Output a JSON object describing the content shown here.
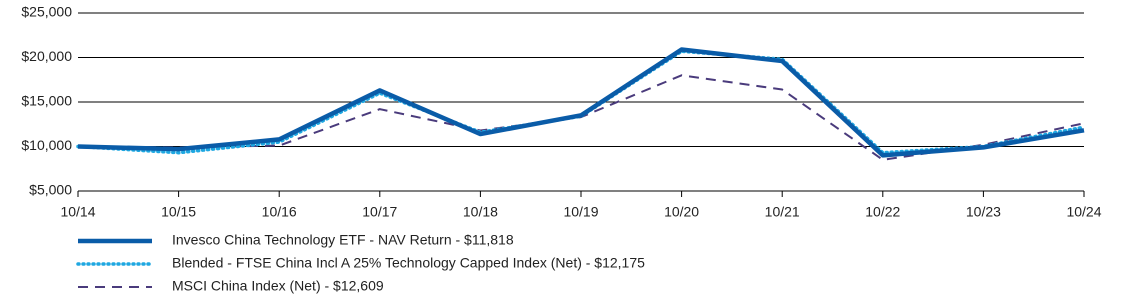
{
  "chart_data": {
    "type": "line",
    "categories": [
      "10/14",
      "10/15",
      "10/16",
      "10/17",
      "10/18",
      "10/19",
      "10/20",
      "10/21",
      "10/22",
      "10/23",
      "10/24"
    ],
    "series": [
      {
        "name": "Invesco China Technology ETF - NAV Return - $11,818",
        "color": "#0a5ca8",
        "style": "solid",
        "values": [
          10000,
          9700,
          10800,
          16300,
          11400,
          13500,
          20900,
          19600,
          9000,
          9900,
          11818
        ]
      },
      {
        "name": "Blended - FTSE China Incl A 25% Technology Capped Index (Net) - $12,175",
        "color": "#1ea7e1",
        "style": "dotted",
        "values": [
          10000,
          9300,
          10500,
          16000,
          11600,
          13400,
          20700,
          19800,
          9300,
          10000,
          12175
        ]
      },
      {
        "name": "MSCI China Index (Net) - $12,609",
        "color": "#4a3b7c",
        "style": "dashed",
        "values": [
          10000,
          9900,
          10100,
          14200,
          11800,
          13300,
          18000,
          16400,
          8500,
          10200,
          12609
        ]
      }
    ],
    "ylim": [
      5000,
      25000
    ],
    "yticks": [
      {
        "value": 5000,
        "label": "$5,000"
      },
      {
        "value": 10000,
        "label": "$10,000"
      },
      {
        "value": 15000,
        "label": "$15,000"
      },
      {
        "value": 20000,
        "label": "$20,000"
      },
      {
        "value": 25000,
        "label": "$25,000"
      }
    ],
    "grid": true,
    "legend": "bottom"
  }
}
